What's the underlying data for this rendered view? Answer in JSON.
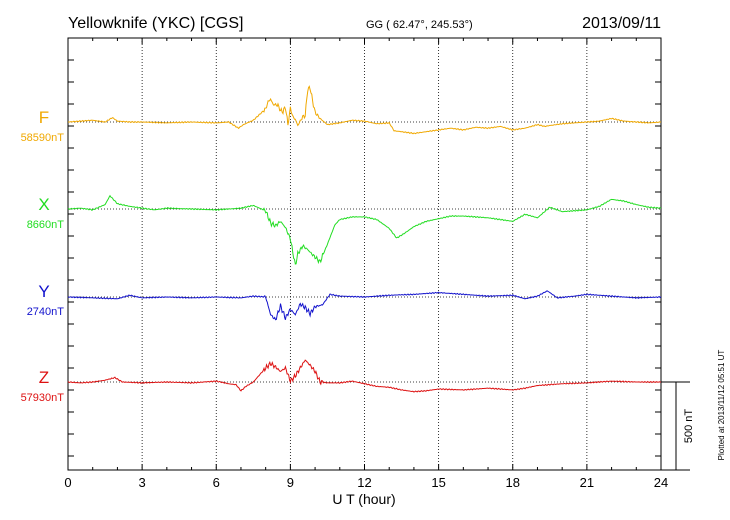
{
  "header": {
    "station": "Yellowknife (YKC)  [CGS]",
    "coords": "GG ( 62.47°, 245.53°)",
    "date": "2013/09/11"
  },
  "footer": {
    "plotted_note": "Plotted at 2013/11/12 05:51  UT"
  },
  "chart_data": {
    "type": "line",
    "title": "Yellowknife (YKC)  [CGS]",
    "xlabel": "U T (hour)",
    "ylabel": "",
    "xlim": [
      0,
      24
    ],
    "x_ticks": [
      0,
      3,
      6,
      9,
      12,
      15,
      18,
      21,
      24
    ],
    "grid": "dotted vertical at every 3 hours",
    "scale_bar": {
      "label": "500 nT",
      "value_nT": 500
    },
    "y_units_note": "each trace is offset vertically; baseline value shown under component name",
    "series": [
      {
        "name": "F",
        "baseline_label": "58590nT",
        "color": "#f0a800",
        "baseline_nT": 58590,
        "x": [
          0,
          0.5,
          1,
          1.5,
          1.8,
          2,
          2.5,
          3,
          4,
          5,
          6,
          6.5,
          6.9,
          7.1,
          7.5,
          8,
          8.1,
          8.2,
          8.3,
          8.5,
          8.6,
          8.7,
          8.8,
          8.9,
          9.0,
          9.1,
          9.2,
          9.3,
          9.5,
          9.6,
          9.7,
          9.8,
          9.9,
          10.0,
          10.2,
          10.5,
          11,
          11.5,
          12,
          12.5,
          13,
          13.2,
          13.5,
          14,
          14.5,
          15,
          15.5,
          16,
          16.5,
          17,
          17.5,
          18,
          18.5,
          19,
          19.3,
          19.5,
          20,
          20.5,
          21,
          21.5,
          22,
          22.5,
          23,
          23.5,
          24
        ],
        "y": [
          0,
          5,
          10,
          0,
          25,
          5,
          0,
          0,
          -5,
          0,
          -5,
          0,
          -35,
          -15,
          10,
          75,
          115,
          130,
          100,
          95,
          65,
          60,
          85,
          -15,
          80,
          30,
          15,
          -20,
          30,
          35,
          185,
          195,
          120,
          55,
          20,
          -15,
          -5,
          10,
          5,
          -10,
          -5,
          -50,
          -55,
          -65,
          -55,
          -45,
          -35,
          -45,
          -30,
          -35,
          -25,
          -45,
          -35,
          -15,
          -25,
          -20,
          -10,
          -5,
          0,
          5,
          20,
          5,
          0,
          -5,
          0
        ]
      },
      {
        "name": "X",
        "baseline_label": "8660nT",
        "color": "#22dd22",
        "baseline_nT": 8660,
        "x": [
          0,
          0.5,
          1,
          1.5,
          1.7,
          2,
          2.5,
          3,
          3.5,
          4,
          5,
          6,
          7,
          7.5,
          8,
          8.2,
          8.4,
          8.6,
          8.8,
          9.0,
          9.2,
          9.3,
          9.5,
          9.7,
          9.9,
          10.2,
          10.5,
          10.8,
          11,
          11.5,
          12,
          12.5,
          13,
          13.3,
          13.6,
          14,
          14.5,
          15,
          15.5,
          16,
          17,
          18,
          18.5,
          19,
          19.5,
          20,
          20.5,
          21,
          21.5,
          22,
          22.5,
          23,
          23.5,
          24
        ],
        "y": [
          0,
          5,
          -5,
          25,
          75,
          30,
          15,
          5,
          -5,
          5,
          0,
          -5,
          5,
          20,
          -10,
          -80,
          -95,
          -70,
          -105,
          -170,
          -320,
          -255,
          -210,
          -230,
          -260,
          -300,
          -200,
          -90,
          -60,
          -45,
          -45,
          -60,
          -110,
          -165,
          -140,
          -100,
          -70,
          -55,
          -40,
          -40,
          -50,
          -70,
          -30,
          -50,
          10,
          -15,
          -10,
          -5,
          15,
          55,
          45,
          25,
          10,
          5
        ]
      },
      {
        "name": "Y",
        "baseline_label": "2740nT",
        "color": "#1111cc",
        "baseline_nT": 2740,
        "x": [
          0,
          1,
          2,
          2.5,
          3,
          4,
          5,
          6,
          7,
          7.5,
          8,
          8.2,
          8.4,
          8.6,
          8.8,
          9.0,
          9.2,
          9.4,
          9.6,
          9.8,
          10.0,
          10.3,
          10.6,
          11,
          12,
          13,
          14,
          15,
          16,
          17,
          18,
          18.5,
          19,
          19.4,
          19.8,
          20.5,
          21,
          22,
          23,
          24
        ],
        "y": [
          0,
          -5,
          -10,
          10,
          -5,
          0,
          -5,
          0,
          -5,
          5,
          0,
          -100,
          -130,
          -50,
          -120,
          -70,
          -100,
          -40,
          -60,
          -95,
          -55,
          -45,
          15,
          5,
          0,
          10,
          15,
          25,
          15,
          5,
          10,
          -10,
          5,
          35,
          -5,
          5,
          15,
          5,
          -5,
          0
        ]
      },
      {
        "name": "Z",
        "baseline_label": "57930nT",
        "color": "#dd1111",
        "baseline_nT": 57930,
        "x": [
          0,
          0.5,
          1,
          1.5,
          1.9,
          2.2,
          3,
          4,
          5,
          6,
          6.5,
          6.8,
          7.0,
          7.2,
          7.5,
          8.0,
          8.2,
          8.4,
          8.6,
          8.8,
          9.0,
          9.2,
          9.4,
          9.6,
          9.8,
          10.0,
          10.2,
          10.5,
          11,
          11.5,
          12,
          12.5,
          13,
          13.5,
          14,
          14.5,
          15,
          16,
          17,
          18,
          18.5,
          19,
          19.5,
          20,
          21,
          22,
          23,
          24
        ],
        "y": [
          0,
          -5,
          0,
          10,
          25,
          0,
          -5,
          0,
          -5,
          5,
          -10,
          -15,
          -50,
          -25,
          0,
          80,
          105,
          85,
          60,
          80,
          5,
          35,
          80,
          125,
          95,
          60,
          0,
          -5,
          -5,
          5,
          -10,
          -25,
          -30,
          -45,
          -55,
          -50,
          -40,
          -45,
          -35,
          -45,
          -35,
          -20,
          -15,
          -10,
          -5,
          5,
          0,
          0
        ]
      }
    ]
  }
}
